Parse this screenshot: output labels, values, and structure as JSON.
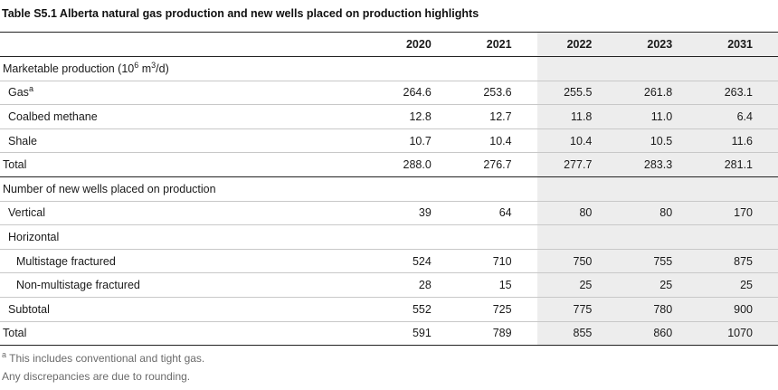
{
  "title": "Table S5.1  Alberta natural gas production and new wells placed on production highlights",
  "years": [
    "2020",
    "2021",
    "2022",
    "2023",
    "2031"
  ],
  "rows": [
    {
      "label": "Marketable production (10",
      "sup": "6",
      "label2": " m",
      "sup2": "3",
      "label3": "/d)",
      "values": [
        "",
        "",
        "",
        "",
        ""
      ]
    },
    {
      "label": "Gas",
      "sup": "a",
      "values": [
        "264.6",
        "253.6",
        "255.5",
        "261.8",
        "263.1"
      ]
    },
    {
      "label": "Coalbed methane",
      "values": [
        "12.8",
        "12.7",
        "11.8",
        "11.0",
        "6.4"
      ]
    },
    {
      "label": "Shale",
      "values": [
        "10.7",
        "10.4",
        "10.4",
        "10.5",
        "11.6"
      ]
    },
    {
      "label": "Total",
      "values": [
        "288.0",
        "276.7",
        "277.7",
        "283.3",
        "281.1"
      ]
    },
    {
      "label": "Number of new wells placed on production",
      "values": [
        "",
        "",
        "",
        "",
        ""
      ]
    },
    {
      "label": "Vertical",
      "values": [
        "39",
        "64",
        "80",
        "80",
        "170"
      ]
    },
    {
      "label": "Horizontal",
      "values": [
        "",
        "",
        "",
        "",
        ""
      ]
    },
    {
      "label": "Multistage fractured",
      "values": [
        "524",
        "710",
        "750",
        "755",
        "875"
      ]
    },
    {
      "label": "Non-multistage fractured",
      "values": [
        "28",
        "15",
        "25",
        "25",
        "25"
      ]
    },
    {
      "label": "Subtotal",
      "values": [
        "552",
        "725",
        "775",
        "780",
        "900"
      ]
    },
    {
      "label": "Total",
      "values": [
        "591",
        "789",
        "855",
        "860",
        "1070"
      ]
    }
  ],
  "notes": {
    "footnote_mark": "a",
    "footnote_text": " This includes conventional and tight gas.",
    "rounding": "Any discrepancies are due to rounding."
  }
}
